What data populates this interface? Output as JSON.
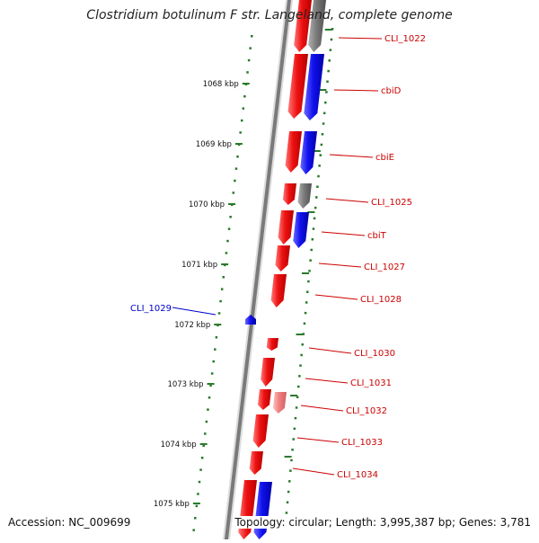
{
  "title": "Clostridium botulinum F str. Langeland, complete genome",
  "footer": {
    "accession": "Accession: NC_009699",
    "summary": "Topology: circular; Length: 3,995,387 bp; Genes: 3,781"
  },
  "colors": {
    "forward_gene": "#ee1111",
    "reverse_gene": "#1111ee",
    "other_feature": "#777777",
    "pseudo_feature": "#f08080",
    "backbone": "#7a7a7a",
    "ruler": "#2a7a2a",
    "label_red": "#cc0000",
    "label_blue": "#0000cc"
  },
  "ruler": {
    "ticks": [
      {
        "label": "1068 kbp"
      },
      {
        "label": "1069 kbp"
      },
      {
        "label": "1070 kbp"
      },
      {
        "label": "1071 kbp"
      },
      {
        "label": "1072 kbp"
      },
      {
        "label": "1073 kbp"
      },
      {
        "label": "1074 kbp"
      },
      {
        "label": "1075 kbp"
      }
    ]
  },
  "gene_labels": [
    {
      "id": "CLI_1022",
      "text": "CLI_1022",
      "color": "red"
    },
    {
      "id": "cbiD",
      "text": "cbiD",
      "color": "red"
    },
    {
      "id": "cbiE",
      "text": "cbiE",
      "color": "red"
    },
    {
      "id": "CLI_1025",
      "text": "CLI_1025",
      "color": "red"
    },
    {
      "id": "cbiT",
      "text": "cbiT",
      "color": "red"
    },
    {
      "id": "CLI_1027",
      "text": "CLI_1027",
      "color": "red"
    },
    {
      "id": "CLI_1028",
      "text": "CLI_1028",
      "color": "red"
    },
    {
      "id": "CLI_1029",
      "text": "CLI_1029",
      "color": "blue"
    },
    {
      "id": "CLI_1030",
      "text": "CLI_1030",
      "color": "red"
    },
    {
      "id": "CLI_1031",
      "text": "CLI_1031",
      "color": "red"
    },
    {
      "id": "CLI_1032",
      "text": "CLI_1032",
      "color": "red"
    },
    {
      "id": "CLI_1033",
      "text": "CLI_1033",
      "color": "red"
    },
    {
      "id": "CLI_1034",
      "text": "CLI_1034",
      "color": "red"
    }
  ]
}
